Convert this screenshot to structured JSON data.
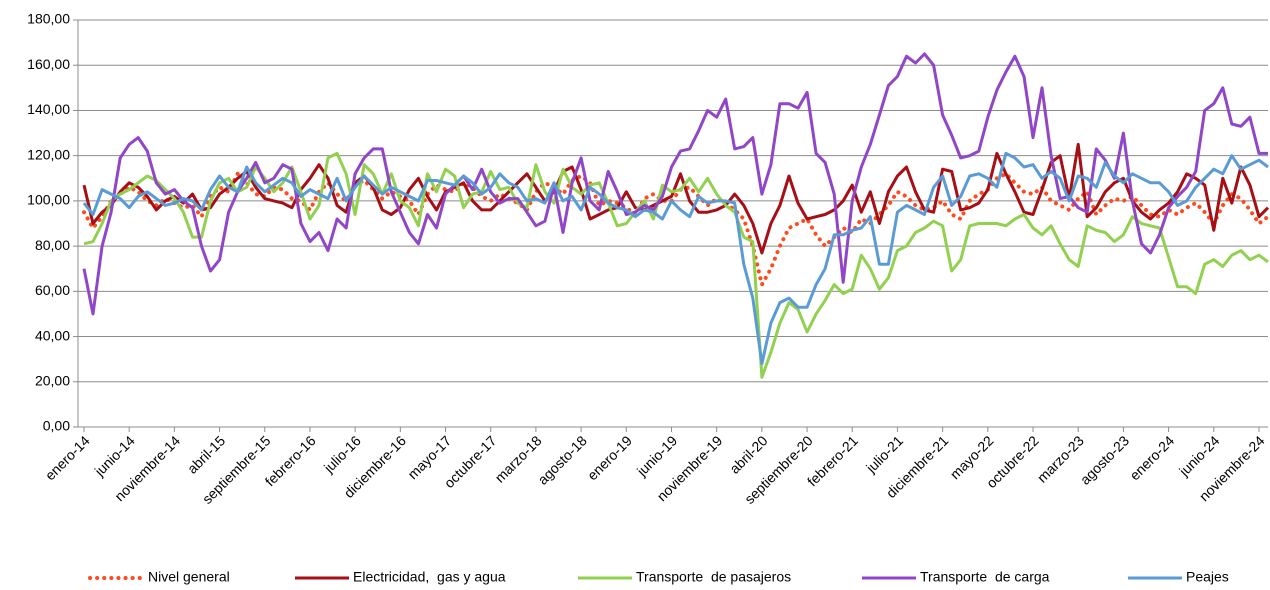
{
  "chart_data": {
    "type": "line",
    "categories": [
      "enero-14",
      null,
      null,
      null,
      null,
      "junio-14",
      null,
      null,
      null,
      null,
      "noviembre-14",
      null,
      null,
      null,
      null,
      "abril-15",
      null,
      null,
      null,
      null,
      "septiembre-15",
      null,
      null,
      null,
      null,
      "febrero-16",
      null,
      null,
      null,
      null,
      "julio-16",
      null,
      null,
      null,
      null,
      "diciembre-16",
      null,
      null,
      null,
      null,
      "mayo-17",
      null,
      null,
      null,
      null,
      "octubre-17",
      null,
      null,
      null,
      null,
      "marzo-18",
      null,
      null,
      null,
      null,
      "agosto-18",
      null,
      null,
      null,
      null,
      "enero-19",
      null,
      null,
      null,
      null,
      "junio-19",
      null,
      null,
      null,
      null,
      "noviembre-19",
      null,
      null,
      null,
      null,
      "abril-20",
      null,
      null,
      null,
      null,
      "septiembre-20",
      null,
      null,
      null,
      null,
      "febrero-21",
      null,
      null,
      null,
      null,
      "julio-21",
      null,
      null,
      null,
      null,
      "diciembre-21",
      null,
      null,
      null,
      null,
      "mayo-22",
      null,
      null,
      null,
      null,
      "octubre-22",
      null,
      null,
      null,
      null,
      "marzo-23",
      null,
      null,
      null,
      null,
      "agosto-23",
      null,
      null,
      null,
      null,
      "enero-24",
      null,
      null,
      null,
      null,
      "junio-24",
      null,
      null,
      null,
      null,
      "noviembre-24",
      null
    ],
    "series": [
      {
        "name": "Nivel general",
        "color": "#ff4a1c",
        "style": "dotted",
        "values": [
          95,
          88,
          93,
          100,
          103,
          106,
          104,
          100,
          98,
          101,
          99,
          97,
          98,
          93,
          102,
          106,
          104,
          112,
          108,
          103,
          102,
          106,
          105,
          101,
          100,
          96,
          104,
          108,
          103,
          100,
          107,
          109,
          105,
          101,
          104,
          102,
          100,
          94,
          103,
          107,
          105,
          104,
          108,
          106,
          102,
          100,
          103,
          101,
          99,
          96,
          104,
          108,
          106,
          103,
          109,
          111,
          108,
          98,
          100,
          99,
          97,
          94,
          101,
          103,
          100,
          100,
          105,
          106,
          102,
          98,
          101,
          99,
          96,
          92,
          80,
          63,
          70,
          80,
          88,
          90,
          92,
          85,
          80,
          84,
          88,
          86,
          92,
          90,
          94,
          98,
          104,
          102,
          98,
          96,
          97,
          100,
          94,
          92,
          100,
          103,
          105,
          110,
          112,
          108,
          104,
          103,
          106,
          100,
          98,
          96,
          101,
          104,
          94,
          98,
          101,
          100,
          102,
          98,
          94,
          93,
          96,
          94,
          97,
          99,
          95,
          90,
          98,
          103,
          101,
          96,
          90,
          93
        ]
      },
      {
        "name": "Electricidad,  gas y agua",
        "color": "#a50f15",
        "style": "solid",
        "values": [
          107,
          90,
          95,
          98,
          104,
          108,
          106,
          102,
          96,
          100,
          102,
          99,
          103,
          96,
          97,
          103,
          106,
          110,
          113,
          106,
          101,
          100,
          99,
          97,
          105,
          110,
          116,
          110,
          98,
          95,
          108,
          111,
          106,
          96,
          94,
          97,
          105,
          110,
          102,
          96,
          104,
          106,
          108,
          100,
          96,
          96,
          100,
          104,
          108,
          112,
          106,
          100,
          104,
          113,
          115,
          105,
          92,
          94,
          96,
          97,
          104,
          97,
          96,
          98,
          100,
          102,
          112,
          100,
          95,
          95,
          96,
          98,
          103,
          98,
          90,
          77,
          90,
          98,
          111,
          99,
          92,
          93,
          94,
          96,
          100,
          107,
          95,
          104,
          90,
          104,
          111,
          115,
          104,
          96,
          95,
          114,
          113,
          96,
          97,
          99,
          105,
          121,
          112,
          104,
          95,
          94,
          105,
          117,
          120,
          101,
          125,
          93,
          97,
          104,
          108,
          110,
          100,
          95,
          92,
          96,
          99,
          104,
          112,
          110,
          107,
          87,
          110,
          99,
          115,
          107,
          93,
          97
        ]
      },
      {
        "name": "Transporte  de pasajeros",
        "color": "#92d050",
        "style": "solid",
        "values": [
          81,
          82,
          90,
          100,
          103,
          105,
          108,
          111,
          109,
          105,
          101,
          95,
          84,
          84,
          100,
          108,
          110,
          104,
          106,
          115,
          110,
          104,
          108,
          115,
          104,
          92,
          98,
          119,
          121,
          112,
          94,
          116,
          112,
          103,
          112,
          100,
          97,
          89,
          112,
          104,
          114,
          111,
          97,
          103,
          104,
          113,
          105,
          106,
          99,
          97,
          116,
          104,
          99,
          114,
          106,
          103,
          107,
          108,
          99,
          89,
          90,
          95,
          100,
          92,
          107,
          104,
          105,
          110,
          104,
          110,
          103,
          98,
          95,
          84,
          82,
          22,
          33,
          46,
          55,
          52,
          42,
          50,
          56,
          63,
          59,
          61,
          76,
          70,
          61,
          66,
          78,
          80,
          86,
          88,
          91,
          89,
          69,
          74,
          89,
          90,
          90,
          90,
          89,
          92,
          94,
          88,
          85,
          89,
          81,
          74,
          71,
          89,
          87,
          86,
          82,
          85,
          93,
          90,
          89,
          88,
          75,
          62,
          62,
          59,
          72,
          74,
          71,
          76,
          78,
          74,
          76,
          73
        ]
      },
      {
        "name": "Transporte  de carga",
        "color": "#9146c8",
        "style": "solid",
        "values": [
          70,
          50,
          80,
          95,
          119,
          125,
          128,
          122,
          108,
          103,
          105,
          100,
          97,
          80,
          69,
          74,
          95,
          104,
          110,
          117,
          108,
          110,
          116,
          114,
          90,
          82,
          86,
          78,
          92,
          88,
          112,
          119,
          123,
          123,
          104,
          95,
          86,
          81,
          94,
          88,
          103,
          107,
          111,
          105,
          114,
          104,
          99,
          101,
          101,
          95,
          89,
          91,
          107,
          86,
          108,
          119,
          100,
          96,
          113,
          104,
          94,
          95,
          98,
          96,
          102,
          115,
          122,
          123,
          131,
          140,
          137,
          145,
          123,
          124,
          128,
          103,
          116,
          143,
          143,
          141,
          148,
          121,
          117,
          103,
          64,
          100,
          115,
          125,
          138,
          151,
          155,
          164,
          161,
          165,
          160,
          138,
          129,
          119,
          120,
          122,
          137,
          149,
          157,
          164,
          155,
          128,
          150,
          120,
          101,
          102,
          97,
          95,
          123,
          118,
          110,
          130,
          100,
          81,
          77,
          85,
          97,
          102,
          106,
          113,
          140,
          143,
          150,
          134,
          133,
          137,
          121,
          121
        ]
      },
      {
        "name": "Peajes",
        "color": "#5b9bd5",
        "style": "solid",
        "values": [
          99,
          94,
          105,
          103,
          101,
          97,
          102,
          104,
          101,
          98,
          99,
          101,
          100,
          96,
          105,
          111,
          106,
          104,
          115,
          108,
          104,
          107,
          110,
          108,
          102,
          105,
          103,
          101,
          110,
          100,
          106,
          111,
          107,
          103,
          106,
          104,
          102,
          100,
          109,
          109,
          108,
          107,
          111,
          108,
          103,
          106,
          112,
          108,
          106,
          100,
          101,
          99,
          108,
          100,
          102,
          96,
          106,
          103,
          99,
          97,
          96,
          93,
          96,
          95,
          92,
          100,
          96,
          93,
          102,
          99,
          100,
          100,
          99,
          72,
          57,
          28,
          46,
          55,
          57,
          53,
          53,
          63,
          70,
          85,
          85,
          87,
          88,
          93,
          72,
          72,
          95,
          98,
          96,
          94,
          106,
          111,
          98,
          102,
          111,
          112,
          110,
          106,
          121,
          119,
          115,
          116,
          110,
          113,
          110,
          100,
          111,
          110,
          106,
          117,
          111,
          108,
          112,
          110,
          108,
          108,
          104,
          98,
          100,
          106,
          110,
          114,
          112,
          120,
          114,
          116,
          118,
          115
        ]
      }
    ],
    "ylim": [
      0,
      180
    ],
    "yticks": [
      {
        "value": 0,
        "label": "0,00"
      },
      {
        "value": 20,
        "label": "20,00"
      },
      {
        "value": 40,
        "label": "40,00"
      },
      {
        "value": 60,
        "label": "60,00"
      },
      {
        "value": 80,
        "label": "80,00"
      },
      {
        "value": 100,
        "label": "100,00"
      },
      {
        "value": 120,
        "label": "120,00"
      },
      {
        "value": 140,
        "label": "140,00"
      },
      {
        "value": 160,
        "label": "160,00"
      },
      {
        "value": 180,
        "label": "180,00"
      }
    ],
    "grid": true,
    "legend": "bottom"
  }
}
